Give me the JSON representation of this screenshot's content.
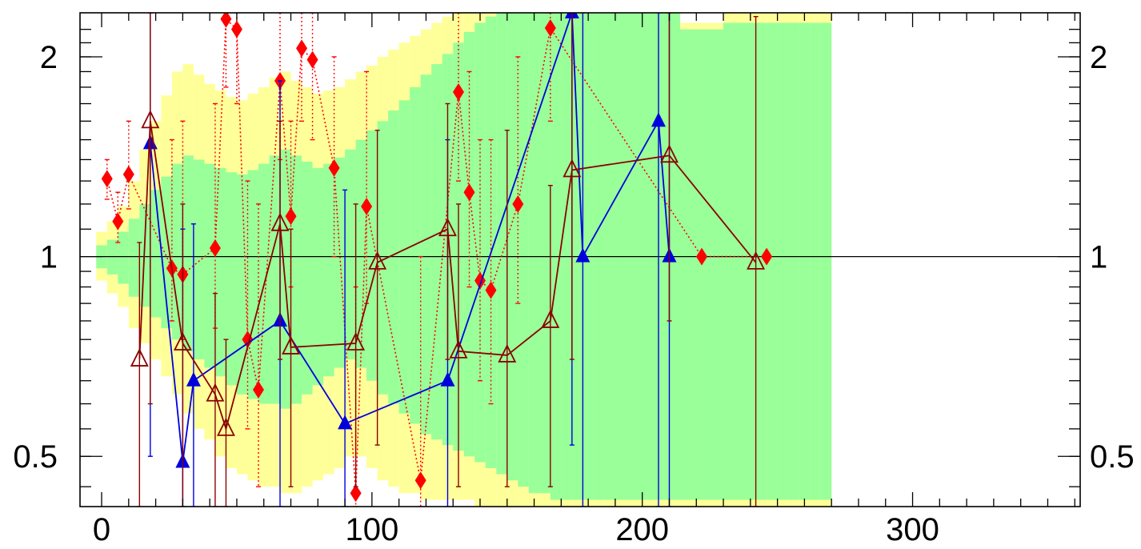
{
  "chart_data": {
    "type": "scatter",
    "title": "",
    "xlabel": "",
    "ylabel": "",
    "xlim": [
      -8,
      362
    ],
    "ylim": [
      0.42,
      2.33
    ],
    "yscale": "log",
    "x_ticks": [
      0,
      100,
      200,
      300
    ],
    "x_tick_labels": [
      "0",
      "100",
      "200",
      "300"
    ],
    "y_ticks": [
      0.5,
      1,
      2
    ],
    "y_tick_labels_left": [
      "0.5",
      "1",
      "2"
    ],
    "y_tick_labels_right": [
      "0.5",
      "1",
      "2"
    ],
    "reference_line": 1,
    "grid": false,
    "legend": "none",
    "colors": {
      "band_outer": "#ffff99",
      "band_inner": "#99ff99",
      "series_red": "#ff0000",
      "series_blue": "#0000dd",
      "series_dark": "#8b0000",
      "axis": "#000000"
    },
    "bands": {
      "x": [
        0,
        4,
        8,
        12,
        16,
        20,
        24,
        28,
        32,
        36,
        40,
        44,
        48,
        52,
        56,
        60,
        64,
        68,
        72,
        76,
        80,
        84,
        88,
        92,
        96,
        100,
        104,
        108,
        112,
        116,
        120,
        124,
        128,
        132,
        136,
        140,
        144,
        148,
        152,
        156,
        160,
        164,
        168,
        172,
        176,
        180,
        184,
        188,
        192,
        196,
        200,
        204,
        208,
        212,
        216,
        220,
        224,
        228,
        232,
        236,
        240,
        244,
        248,
        252,
        256,
        260,
        264,
        268
      ],
      "outer_low": [
        0.92,
        0.88,
        0.84,
        0.78,
        0.74,
        0.7,
        0.66,
        0.62,
        0.58,
        0.55,
        0.53,
        0.5,
        0.48,
        0.47,
        0.46,
        0.45,
        0.45,
        0.44,
        0.44,
        0.45,
        0.46,
        0.47,
        0.48,
        0.5,
        0.5,
        0.48,
        0.46,
        0.45,
        0.44,
        0.44,
        0.43,
        0.43,
        0.43,
        0.43,
        0.43,
        0.42,
        0.42,
        0.42,
        0.42,
        0.42,
        0.42,
        0.42,
        0.42,
        0.42,
        0.42,
        0.42,
        0.42,
        0.42,
        0.42,
        0.42,
        0.42,
        0.42,
        0.42,
        0.42,
        0.42,
        0.42,
        0.42,
        0.42,
        0.42,
        0.42,
        0.42,
        0.42,
        0.42,
        0.42,
        0.42,
        0.42,
        0.42,
        0.42
      ],
      "outer_high": [
        1.09,
        1.13,
        1.19,
        1.3,
        1.45,
        1.6,
        1.75,
        1.9,
        1.95,
        1.88,
        1.82,
        1.78,
        1.74,
        1.72,
        1.76,
        1.8,
        1.86,
        1.9,
        1.84,
        1.8,
        1.76,
        1.78,
        1.8,
        1.85,
        1.9,
        1.94,
        2.0,
        2.05,
        2.1,
        2.15,
        2.2,
        2.25,
        2.3,
        2.33,
        2.33,
        2.33,
        2.33,
        2.33,
        2.33,
        2.33,
        2.33,
        2.33,
        2.33,
        2.33,
        2.33,
        2.33,
        2.33,
        2.33,
        2.33,
        2.33,
        2.33,
        2.33,
        2.33,
        2.33,
        2.25,
        2.25,
        2.25,
        2.25,
        2.33,
        2.33,
        2.33,
        2.33,
        2.33,
        2.33,
        2.33,
        2.33,
        2.33,
        2.33
      ],
      "inner_low": [
        0.96,
        0.94,
        0.91,
        0.87,
        0.84,
        0.81,
        0.78,
        0.75,
        0.72,
        0.7,
        0.68,
        0.66,
        0.64,
        0.62,
        0.61,
        0.6,
        0.6,
        0.59,
        0.6,
        0.62,
        0.64,
        0.66,
        0.68,
        0.7,
        0.68,
        0.65,
        0.62,
        0.6,
        0.58,
        0.56,
        0.54,
        0.53,
        0.52,
        0.51,
        0.5,
        0.49,
        0.48,
        0.47,
        0.46,
        0.45,
        0.44,
        0.44,
        0.43,
        0.43,
        0.43,
        0.43,
        0.43,
        0.43,
        0.43,
        0.43,
        0.43,
        0.43,
        0.43,
        0.43,
        0.43,
        0.43,
        0.43,
        0.43,
        0.43,
        0.43,
        0.43,
        0.43,
        0.43,
        0.43,
        0.43,
        0.43,
        0.43,
        0.43
      ],
      "inner_high": [
        1.04,
        1.06,
        1.09,
        1.14,
        1.2,
        1.26,
        1.32,
        1.38,
        1.42,
        1.4,
        1.38,
        1.36,
        1.34,
        1.33,
        1.35,
        1.38,
        1.42,
        1.45,
        1.42,
        1.39,
        1.36,
        1.38,
        1.41,
        1.45,
        1.5,
        1.55,
        1.6,
        1.66,
        1.72,
        1.8,
        1.88,
        1.95,
        2.02,
        2.1,
        2.18,
        2.25,
        2.3,
        2.33,
        2.33,
        2.33,
        2.33,
        2.33,
        2.33,
        2.33,
        2.33,
        2.33,
        2.33,
        2.33,
        2.33,
        2.33,
        2.33,
        2.33,
        2.33,
        2.33,
        2.2,
        2.2,
        2.2,
        2.2,
        2.25,
        2.25,
        2.25,
        2.25,
        2.25,
        2.25,
        2.25,
        2.25,
        2.25,
        2.25
      ]
    },
    "series": [
      {
        "marker": "diamond",
        "color": "#ff0000",
        "line": "dotted",
        "points": [
          {
            "x": 2,
            "y": 1.31,
            "lo": 1.22,
            "hi": 1.4
          },
          {
            "x": 6,
            "y": 1.13,
            "lo": 1.05,
            "hi": 1.25
          },
          {
            "x": 10,
            "y": 1.33,
            "lo": 1.18,
            "hi": 1.6
          },
          {
            "x": 26,
            "y": 0.96,
            "lo": 0.8,
            "hi": 1.5
          },
          {
            "x": 30,
            "y": 0.94,
            "lo": 0.75,
            "hi": 1.6
          },
          {
            "x": 42,
            "y": 1.03,
            "lo": 0.78,
            "hi": 1.7
          },
          {
            "x": 46,
            "y": 2.28,
            "lo": 1.8,
            "hi": 2.33
          },
          {
            "x": 50,
            "y": 2.2,
            "lo": 1.7,
            "hi": 2.33
          },
          {
            "x": 54,
            "y": 0.75,
            "lo": 0.55,
            "hi": 1.3
          },
          {
            "x": 58,
            "y": 0.63,
            "lo": 0.45,
            "hi": 1.2
          },
          {
            "x": 66,
            "y": 1.84,
            "lo": 1.4,
            "hi": 2.33
          },
          {
            "x": 70,
            "y": 1.15,
            "lo": 0.9,
            "hi": 1.6
          },
          {
            "x": 74,
            "y": 2.06,
            "lo": 1.6,
            "hi": 2.33
          },
          {
            "x": 78,
            "y": 1.98,
            "lo": 1.5,
            "hi": 2.33
          },
          {
            "x": 86,
            "y": 1.36,
            "lo": 1.0,
            "hi": 2.0
          },
          {
            "x": 94,
            "y": 0.44,
            "lo": 0.42,
            "hi": 0.9
          },
          {
            "x": 98,
            "y": 1.19,
            "lo": 0.85,
            "hi": 1.9
          },
          {
            "x": 118,
            "y": 0.46,
            "lo": 0.42,
            "hi": 1.0
          },
          {
            "x": 132,
            "y": 1.77,
            "lo": 1.3,
            "hi": 2.33
          },
          {
            "x": 136,
            "y": 1.25,
            "lo": 0.9,
            "hi": 1.9
          },
          {
            "x": 140,
            "y": 0.92,
            "lo": 0.65,
            "hi": 1.5
          },
          {
            "x": 144,
            "y": 0.89,
            "lo": 0.6,
            "hi": 1.5
          },
          {
            "x": 154,
            "y": 1.2,
            "lo": 0.85,
            "hi": 2.0
          },
          {
            "x": 166,
            "y": 2.21,
            "lo": 1.6,
            "hi": 2.33
          },
          {
            "x": 222,
            "y": 1.0,
            "lo": 1.0,
            "hi": 1.0
          },
          {
            "x": 246,
            "y": 1.0,
            "lo": 1.0,
            "hi": 1.0
          }
        ]
      },
      {
        "marker": "triangle-filled",
        "color": "#0000dd",
        "line": "solid",
        "points": [
          {
            "x": 18,
            "y": 1.48,
            "lo": 0.5,
            "hi": 2.33
          },
          {
            "x": 30,
            "y": 0.49,
            "lo": 0.42,
            "hi": 1.1
          },
          {
            "x": 34,
            "y": 0.65,
            "lo": 0.42,
            "hi": 1.12
          },
          {
            "x": 66,
            "y": 0.8,
            "lo": 0.42,
            "hi": 1.84
          },
          {
            "x": 90,
            "y": 0.56,
            "lo": 0.42,
            "hi": 1.26
          },
          {
            "x": 128,
            "y": 0.65,
            "lo": 0.42,
            "hi": 1.5
          },
          {
            "x": 174,
            "y": 2.33,
            "lo": 0.52,
            "hi": 2.33
          },
          {
            "x": 178,
            "y": 1.0,
            "lo": 0.42,
            "hi": 2.33
          },
          {
            "x": 206,
            "y": 1.6,
            "lo": 0.42,
            "hi": 2.33
          },
          {
            "x": 210,
            "y": 1.0,
            "lo": 0.42,
            "hi": 2.33
          }
        ]
      },
      {
        "marker": "triangle-open",
        "color": "#8b0000",
        "line": "solid",
        "points": [
          {
            "x": 14,
            "y": 0.7,
            "lo": 0.42,
            "hi": 1.05
          },
          {
            "x": 18,
            "y": 1.6,
            "lo": 0.6,
            "hi": 2.33
          },
          {
            "x": 30,
            "y": 0.74,
            "lo": 0.42,
            "hi": 1.2
          },
          {
            "x": 42,
            "y": 0.62,
            "lo": 0.42,
            "hi": 0.88
          },
          {
            "x": 46,
            "y": 0.55,
            "lo": 0.42,
            "hi": 0.75
          },
          {
            "x": 66,
            "y": 1.12,
            "lo": 0.7,
            "hi": 1.6
          },
          {
            "x": 70,
            "y": 0.73,
            "lo": 0.45,
            "hi": 1.1
          },
          {
            "x": 94,
            "y": 0.74,
            "lo": 0.45,
            "hi": 1.2
          },
          {
            "x": 102,
            "y": 0.98,
            "lo": 0.52,
            "hi": 1.55
          },
          {
            "x": 128,
            "y": 1.1,
            "lo": 0.7,
            "hi": 1.7
          },
          {
            "x": 132,
            "y": 0.72,
            "lo": 0.45,
            "hi": 1.2
          },
          {
            "x": 150,
            "y": 0.71,
            "lo": 0.45,
            "hi": 1.55
          },
          {
            "x": 166,
            "y": 0.8,
            "lo": 0.45,
            "hi": 1.28
          },
          {
            "x": 174,
            "y": 1.35,
            "lo": 0.7,
            "hi": 2.33
          },
          {
            "x": 210,
            "y": 1.42,
            "lo": 0.8,
            "hi": 2.33
          },
          {
            "x": 242,
            "y": 0.98,
            "lo": 0.42,
            "hi": 2.3
          }
        ]
      }
    ]
  }
}
